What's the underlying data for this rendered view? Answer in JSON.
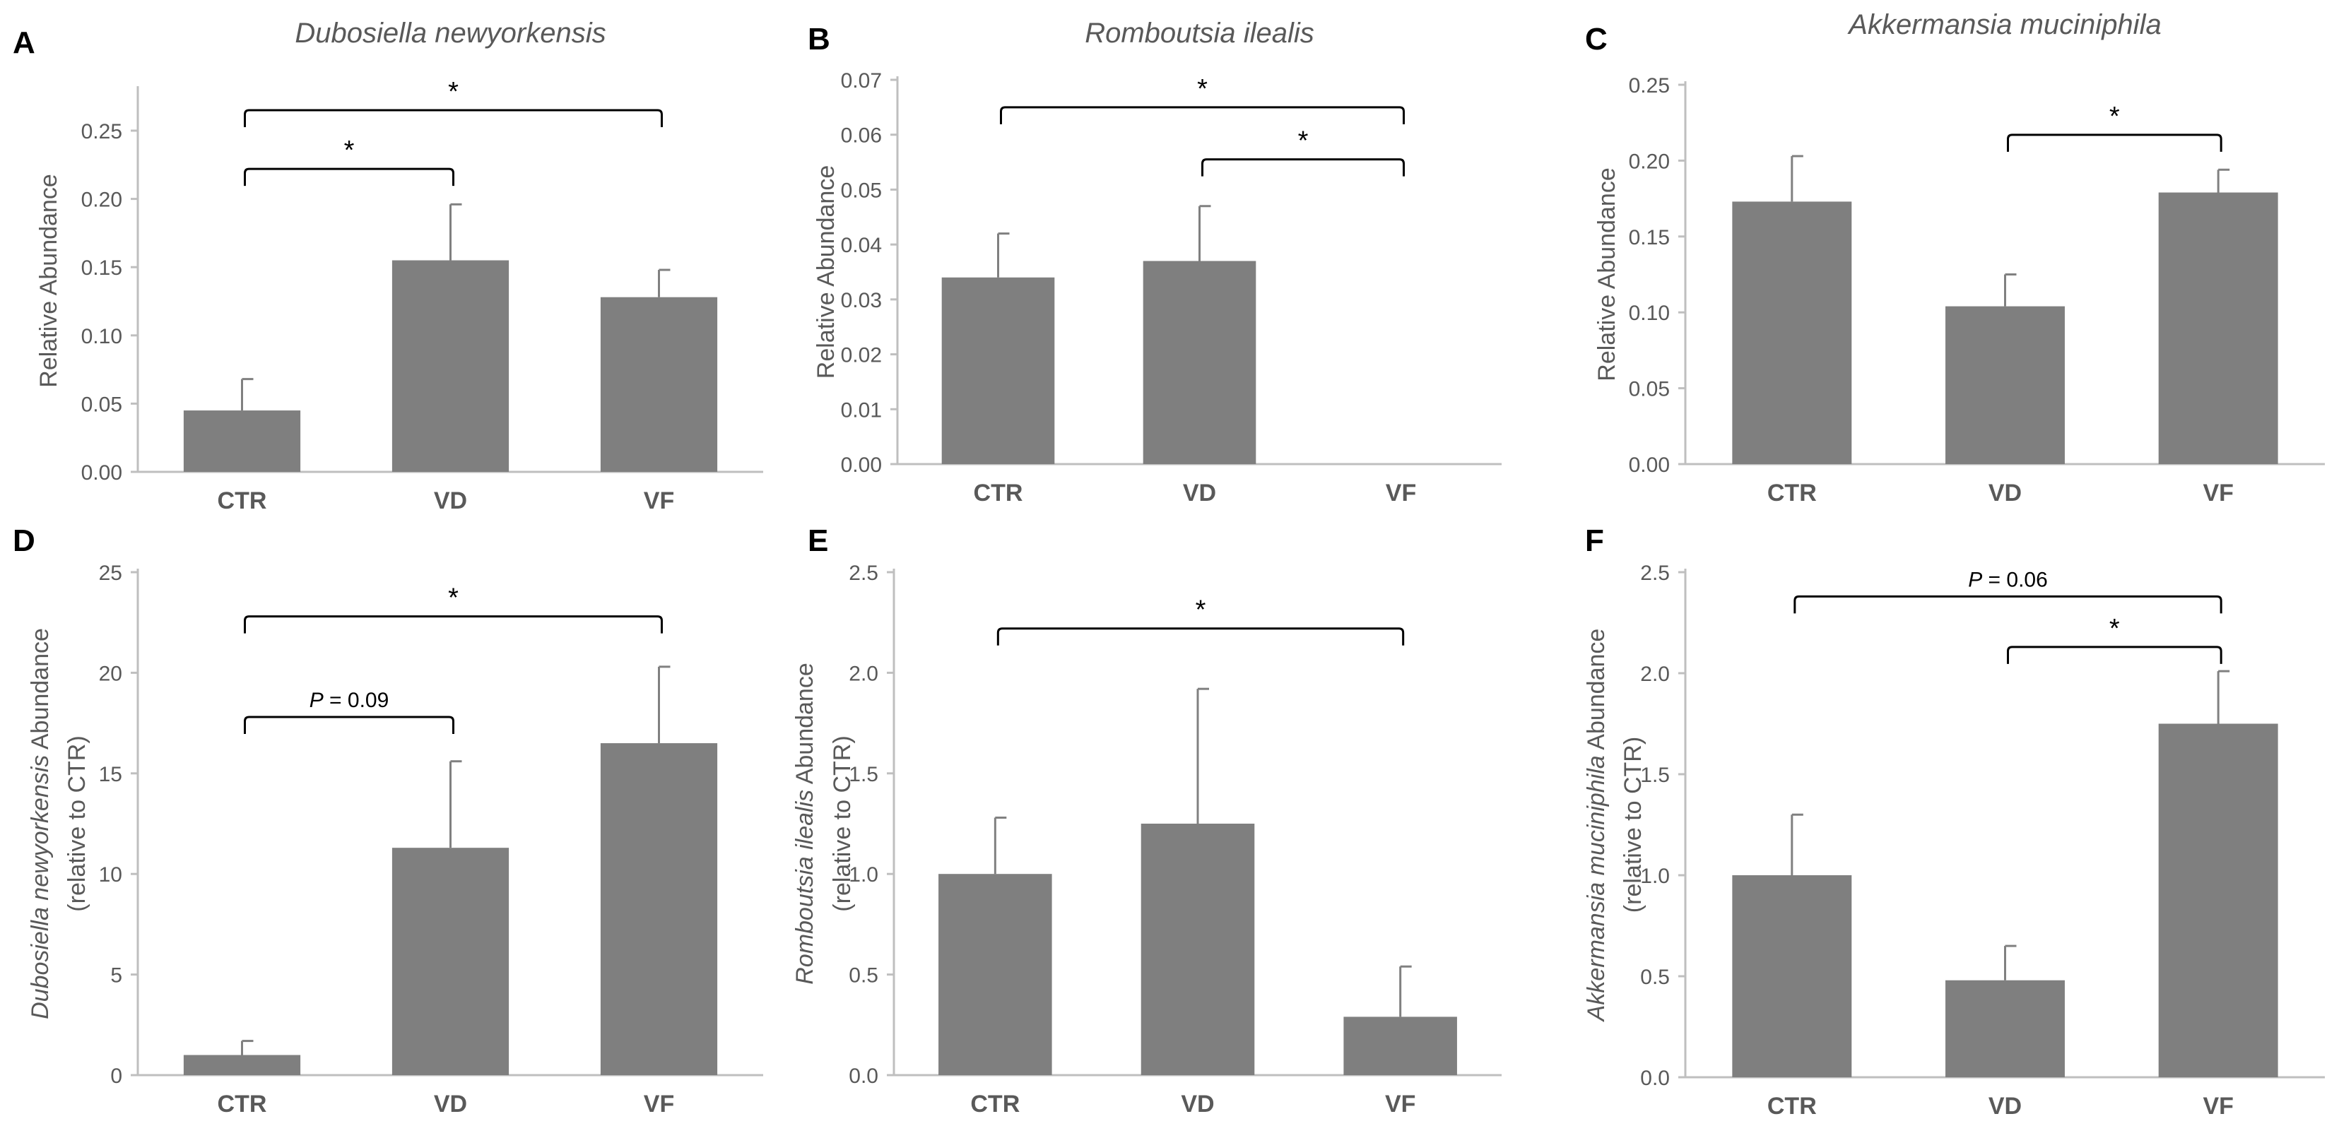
{
  "figure": {
    "bar_color": "#7f7f7f",
    "axis_color": "#bfbfbf",
    "text_color": "#595959"
  },
  "chart_data": [
    {
      "panel_letter": "A",
      "type": "bar",
      "title": "Dubosiella newyorkensis",
      "title_italic": true,
      "categories": [
        "CTR",
        "VD",
        "VF"
      ],
      "values": [
        0.045,
        0.155,
        0.128
      ],
      "errors": [
        0.023,
        0.041,
        0.02
      ],
      "ylabel": [
        "Relative Abundance"
      ],
      "ylim": [
        0,
        0.28
      ],
      "yticks": [
        0,
        0.05,
        0.1,
        0.15,
        0.2,
        0.25
      ],
      "ytick_labels": [
        "0.00",
        "0.05",
        "0.10",
        "0.15",
        "0.20",
        "0.25"
      ],
      "annotations": [
        {
          "from": 0,
          "to": 2,
          "label": "*",
          "y": 0.265
        },
        {
          "from": 0,
          "to": 1,
          "label": "*",
          "y": 0.222
        }
      ]
    },
    {
      "panel_letter": "B",
      "type": "bar",
      "title": "Romboutsia ilealis",
      "title_italic": true,
      "categories": [
        "CTR",
        "VD",
        "VF"
      ],
      "values": [
        0.034,
        0.037,
        0.0
      ],
      "errors": [
        0.008,
        0.01,
        0.0
      ],
      "ylabel": [
        "Relative Abundance"
      ],
      "ylim": [
        0,
        0.07
      ],
      "yticks": [
        0,
        0.01,
        0.02,
        0.03,
        0.04,
        0.05,
        0.06,
        0.07
      ],
      "ytick_labels": [
        "0.00",
        "0.01",
        "0.02",
        "0.03",
        "0.04",
        "0.05",
        "0.06",
        "0.07"
      ],
      "annotations": [
        {
          "from": 0,
          "to": 2,
          "label": "*",
          "y": 0.065
        },
        {
          "from": 1,
          "to": 2,
          "label": "*",
          "y": 0.0555
        }
      ]
    },
    {
      "panel_letter": "C",
      "type": "bar",
      "title": "Akkermansia muciniphila",
      "title_italic": true,
      "categories": [
        "CTR",
        "VD",
        "VF"
      ],
      "values": [
        0.173,
        0.104,
        0.179
      ],
      "errors": [
        0.03,
        0.021,
        0.015
      ],
      "ylabel": [
        "Relative Abundance"
      ],
      "ylim": [
        0,
        0.25
      ],
      "yticks": [
        0,
        0.05,
        0.1,
        0.15,
        0.2,
        0.25
      ],
      "ytick_labels": [
        "0.00",
        "0.05",
        "0.10",
        "0.15",
        "0.20",
        "0.25"
      ],
      "annotations": [
        {
          "from": 1,
          "to": 2,
          "label": "*",
          "y": 0.217
        }
      ]
    },
    {
      "panel_letter": "D",
      "type": "bar",
      "title": "",
      "categories": [
        "CTR",
        "VD",
        "VF"
      ],
      "values": [
        1.0,
        11.3,
        16.5
      ],
      "errors": [
        0.7,
        4.3,
        3.8
      ],
      "ylabel": [
        "Dubosiella newyorkensis Abundance",
        "(relative to CTR)"
      ],
      "ylabel_italic_part": "Dubosiella newyorkensis",
      "ylabel_rest": " Abundance",
      "ylim": [
        0,
        25
      ],
      "yticks": [
        0,
        5,
        10,
        15,
        20,
        25
      ],
      "ytick_labels": [
        "0",
        "5",
        "10",
        "15",
        "20",
        "25"
      ],
      "annotations": [
        {
          "from": 0,
          "to": 2,
          "label": "*",
          "y": 22.8
        },
        {
          "from": 0,
          "to": 1,
          "label": "= 0.09",
          "p_prefix": "P",
          "y": 17.8
        }
      ]
    },
    {
      "panel_letter": "E",
      "type": "bar",
      "title": "",
      "categories": [
        "CTR",
        "VD",
        "VF"
      ],
      "values": [
        1.0,
        1.25,
        0.29
      ],
      "errors": [
        0.28,
        0.67,
        0.25
      ],
      "ylabel": [
        "Romboutsia ilealis Abundance",
        "(relative to CTR)"
      ],
      "ylabel_italic_part": "Romboutsia ilealis",
      "ylabel_rest": " Abundance",
      "ylim": [
        0,
        2.5
      ],
      "yticks": [
        0,
        0.5,
        1.0,
        1.5,
        2.0,
        2.5
      ],
      "ytick_labels": [
        "0.0",
        "0.5",
        "1.0",
        "1.5",
        "2.0",
        "2.5"
      ],
      "annotations": [
        {
          "from": 0,
          "to": 2,
          "label": "*",
          "y": 2.22
        }
      ]
    },
    {
      "panel_letter": "F",
      "type": "bar",
      "title": "",
      "categories": [
        "CTR",
        "VD",
        "VF"
      ],
      "values": [
        1.0,
        0.48,
        1.75
      ],
      "errors": [
        0.3,
        0.17,
        0.26
      ],
      "ylabel": [
        "Akkermansia muciniphila Abundance",
        "(relative to CTR)"
      ],
      "ylabel_italic_part": "Akkermansia muciniphila",
      "ylabel_rest": " Abundance",
      "ylim": [
        0,
        2.5
      ],
      "yticks": [
        0,
        0.5,
        1.0,
        1.5,
        2.0,
        2.5
      ],
      "ytick_labels": [
        "0.0",
        "0.5",
        "1.0",
        "1.5",
        "2.0",
        "2.5"
      ],
      "annotations": [
        {
          "from": 0,
          "to": 2,
          "label": "= 0.06",
          "p_prefix": "P",
          "y": 2.38
        },
        {
          "from": 1,
          "to": 2,
          "label": "*",
          "y": 2.13
        }
      ]
    }
  ]
}
